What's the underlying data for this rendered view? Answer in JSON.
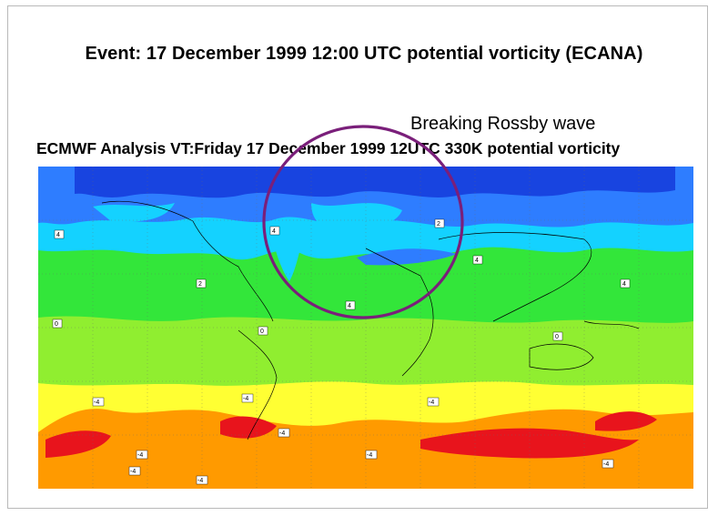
{
  "header": {
    "event_title": "Event: 17 December 1999 12:00 UTC potential vorticity (ECANA)"
  },
  "annotation": {
    "label": "Breaking Rossby wave",
    "circle_color": "#7a1f7a"
  },
  "map": {
    "title": "ECMWF  Analysis VT:Friday 17 December 1999 12UTC 330K potential vorticity",
    "contour_labels": [
      "4",
      "4",
      "2",
      "4",
      "2",
      "4",
      "4",
      "0",
      "0",
      "0",
      "-4",
      "-4",
      "-4",
      "-4",
      "-4",
      "-4",
      "-4",
      "-4",
      "-4"
    ],
    "colors": {
      "pv_high": "#1844e0",
      "pv_mid_high": "#2e7dff",
      "pv_mid": "#14d2ff",
      "pv_low": "#33e63a",
      "pv_zero": "#90ee30",
      "pv_neg_low": "#ffff33",
      "pv_neg_mid": "#ff9a00",
      "pv_neg_high": "#e8141c",
      "pv_neg_extreme": "#8a0000"
    }
  }
}
